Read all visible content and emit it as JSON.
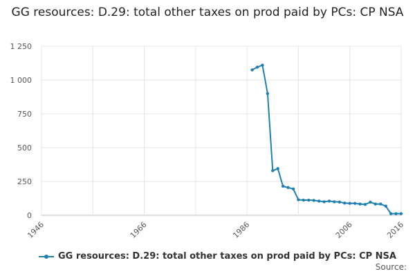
{
  "chart_data": {
    "type": "line",
    "title": "GG resources: D.29: total other taxes on prod paid by PCs: CP NSA",
    "xlabel": "",
    "ylabel": "",
    "xlim": [
      1946,
      2016
    ],
    "ylim": [
      0,
      1250
    ],
    "x_ticks": [
      1946,
      1966,
      1986,
      2006,
      2016
    ],
    "x_tick_labels": [
      "1946",
      "1966",
      "1986",
      "2006",
      "2016"
    ],
    "y_ticks": [
      0,
      250,
      500,
      750,
      1000,
      1250
    ],
    "y_tick_labels": [
      "0",
      "250",
      "500",
      "750",
      "1 000",
      "1 250"
    ],
    "grid": true,
    "legend_position": "bottom-left",
    "series": [
      {
        "name": "GG resources: D.29: total other taxes on prod paid by PCs: CP NSA",
        "color": "#1f7fb5",
        "x": [
          1987,
          1988,
          1989,
          1990,
          1991,
          1992,
          1993,
          1994,
          1995,
          1996,
          1997,
          1998,
          1999,
          2000,
          2001,
          2002,
          2003,
          2004,
          2005,
          2006,
          2007,
          2008,
          2009,
          2010,
          2011,
          2012,
          2013,
          2014,
          2015,
          2016
        ],
        "y": [
          1075,
          1095,
          1110,
          900,
          330,
          345,
          215,
          205,
          195,
          115,
          112,
          112,
          110,
          105,
          100,
          105,
          100,
          98,
          90,
          88,
          88,
          83,
          80,
          97,
          83,
          83,
          68,
          12,
          12,
          12
        ]
      }
    ]
  },
  "legend": {
    "label": "GG resources: D.29: total other taxes on prod paid by PCs: CP NSA"
  },
  "source_label": "Source:"
}
